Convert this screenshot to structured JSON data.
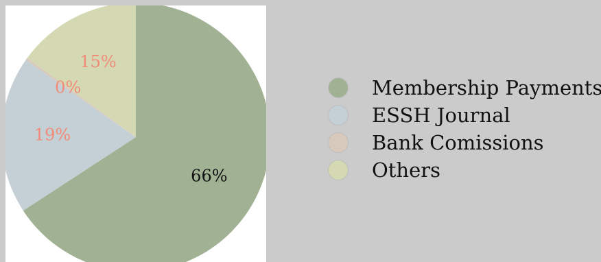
{
  "chart_data": {
    "type": "pie",
    "title": "",
    "legend_position": "right",
    "series": [
      {
        "name": "Membership Payments",
        "value": 66,
        "label": "66%",
        "color": "#a0b194",
        "label_color": "#111111"
      },
      {
        "name": "ESSH Journal",
        "value": 19,
        "label": "19%",
        "color": "#c5d0d6",
        "label_color": "#f28a78"
      },
      {
        "name": "Bank Comissions",
        "value": 0.3,
        "label": "0%",
        "color": "#d8c9bd",
        "label_color": "#f28a78"
      },
      {
        "name": "Others",
        "value": 15,
        "label": "15%",
        "color": "#d4d9b4",
        "label_color": "#f28a78"
      }
    ]
  }
}
